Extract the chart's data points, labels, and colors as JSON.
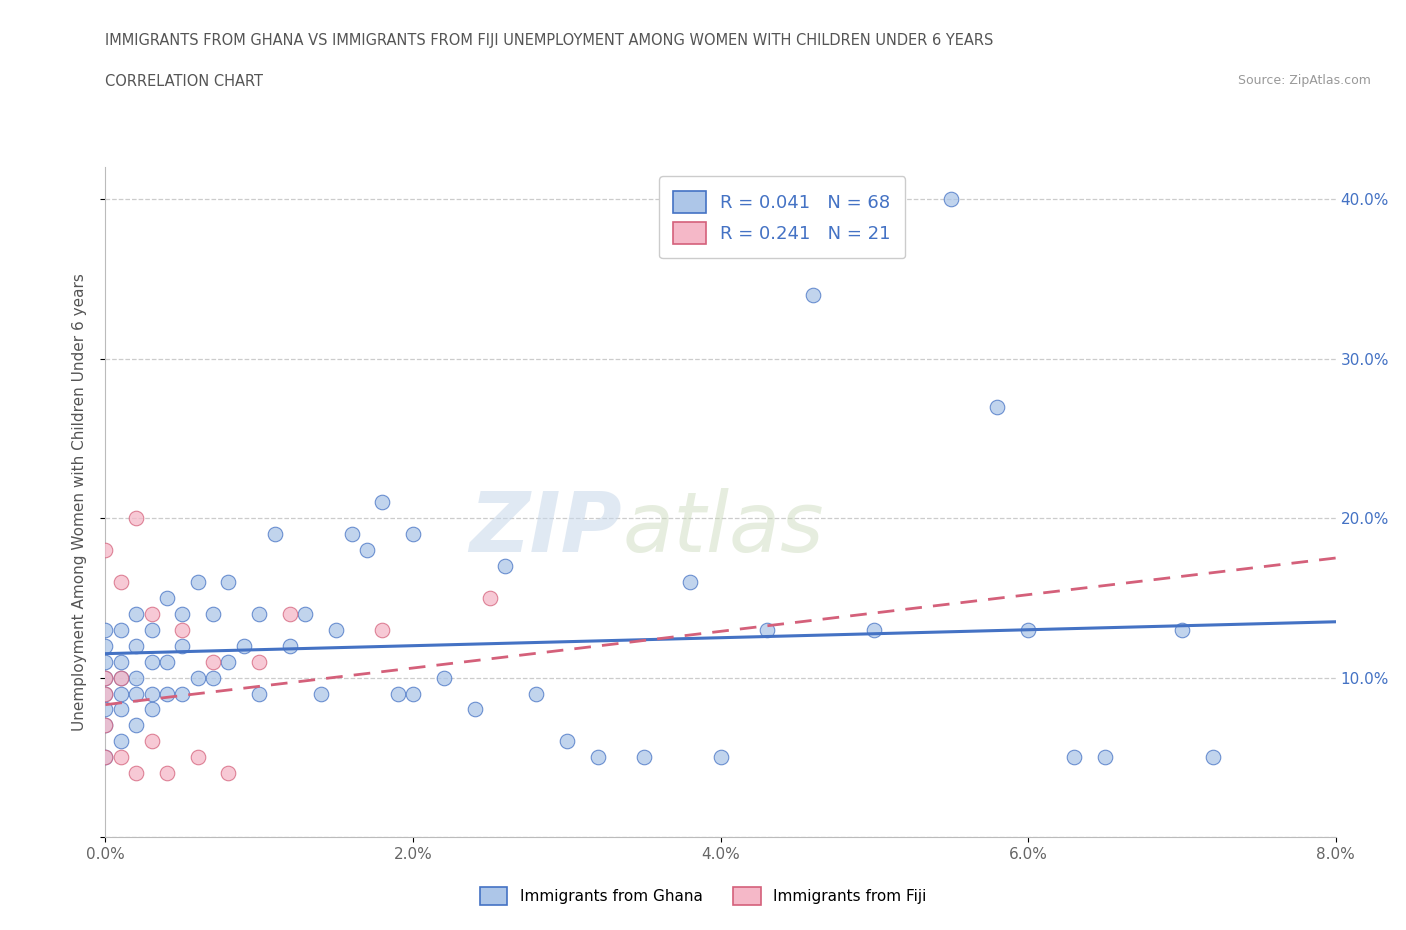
{
  "title_line1": "IMMIGRANTS FROM GHANA VS IMMIGRANTS FROM FIJI UNEMPLOYMENT AMONG WOMEN WITH CHILDREN UNDER 6 YEARS",
  "title_line2": "CORRELATION CHART",
  "source": "Source: ZipAtlas.com",
  "ylabel": "Unemployment Among Women with Children Under 6 years",
  "xlim": [
    0.0,
    0.08
  ],
  "ylim": [
    0.0,
    0.42
  ],
  "xticks": [
    0.0,
    0.02,
    0.04,
    0.06,
    0.08
  ],
  "yticks": [
    0.0,
    0.1,
    0.2,
    0.3,
    0.4
  ],
  "xticklabels": [
    "0.0%",
    "2.0%",
    "4.0%",
    "6.0%",
    "8.0%"
  ],
  "yticklabels": [
    "",
    "10.0%",
    "20.0%",
    "30.0%",
    "40.0%"
  ],
  "ghana_R": 0.041,
  "ghana_N": 68,
  "fiji_R": 0.241,
  "fiji_N": 21,
  "ghana_color": "#adc6e8",
  "fiji_color": "#f5b8c8",
  "ghana_line_color": "#4472c4",
  "fiji_line_color": "#d4607a",
  "watermark_zip": "ZIP",
  "watermark_atlas": "atlas",
  "ghana_scatter_x": [
    0.0,
    0.0,
    0.0,
    0.0,
    0.0,
    0.0,
    0.0,
    0.0,
    0.001,
    0.001,
    0.001,
    0.001,
    0.001,
    0.001,
    0.002,
    0.002,
    0.002,
    0.002,
    0.002,
    0.003,
    0.003,
    0.003,
    0.003,
    0.004,
    0.004,
    0.004,
    0.005,
    0.005,
    0.005,
    0.006,
    0.006,
    0.007,
    0.007,
    0.008,
    0.008,
    0.009,
    0.01,
    0.01,
    0.011,
    0.012,
    0.013,
    0.014,
    0.015,
    0.016,
    0.017,
    0.018,
    0.019,
    0.02,
    0.02,
    0.022,
    0.024,
    0.026,
    0.028,
    0.03,
    0.032,
    0.035,
    0.038,
    0.04,
    0.043,
    0.046,
    0.05,
    0.055,
    0.058,
    0.06,
    0.063,
    0.065,
    0.07,
    0.072
  ],
  "ghana_scatter_y": [
    0.05,
    0.07,
    0.08,
    0.09,
    0.1,
    0.11,
    0.12,
    0.13,
    0.06,
    0.08,
    0.09,
    0.1,
    0.11,
    0.13,
    0.07,
    0.09,
    0.1,
    0.12,
    0.14,
    0.08,
    0.09,
    0.11,
    0.13,
    0.09,
    0.11,
    0.15,
    0.09,
    0.12,
    0.14,
    0.1,
    0.16,
    0.1,
    0.14,
    0.11,
    0.16,
    0.12,
    0.09,
    0.14,
    0.19,
    0.12,
    0.14,
    0.09,
    0.13,
    0.19,
    0.18,
    0.21,
    0.09,
    0.09,
    0.19,
    0.1,
    0.08,
    0.17,
    0.09,
    0.06,
    0.05,
    0.05,
    0.16,
    0.05,
    0.13,
    0.34,
    0.13,
    0.4,
    0.27,
    0.13,
    0.05,
    0.05,
    0.13,
    0.05
  ],
  "fiji_scatter_x": [
    0.0,
    0.0,
    0.0,
    0.0,
    0.0,
    0.001,
    0.001,
    0.001,
    0.002,
    0.002,
    0.003,
    0.003,
    0.004,
    0.005,
    0.006,
    0.007,
    0.008,
    0.01,
    0.012,
    0.018,
    0.025
  ],
  "fiji_scatter_y": [
    0.05,
    0.07,
    0.09,
    0.1,
    0.18,
    0.05,
    0.1,
    0.16,
    0.04,
    0.2,
    0.06,
    0.14,
    0.04,
    0.13,
    0.05,
    0.11,
    0.04,
    0.11,
    0.14,
    0.13,
    0.15
  ],
  "ghana_trend_x": [
    0.0,
    0.08
  ],
  "ghana_trend_y": [
    0.115,
    0.135
  ],
  "fiji_trend_x": [
    0.0,
    0.08
  ],
  "fiji_trend_y": [
    0.083,
    0.175
  ]
}
